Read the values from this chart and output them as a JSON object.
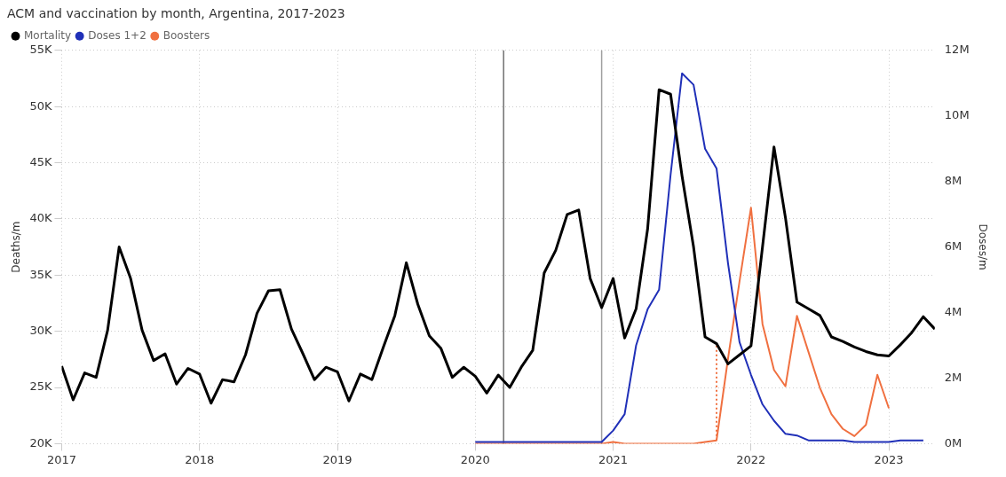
{
  "chart_data": {
    "type": "line",
    "title": "ACM and vaccination by month, Argentina, 2017-2023",
    "ylabel": "Deaths/m",
    "y2label": "Doses/m",
    "legend": "top left",
    "grid": true,
    "marker": "none",
    "xlim": [
      "2017-01",
      "2023-05"
    ],
    "xticks": [
      "2017",
      "2018",
      "2019",
      "2020",
      "2021",
      "2022",
      "2023"
    ],
    "ylim": [
      20000,
      55000
    ],
    "yticks": [
      {
        "value": 20000,
        "label": "20K"
      },
      {
        "value": 25000,
        "label": "25K"
      },
      {
        "value": 30000,
        "label": "30K"
      },
      {
        "value": 35000,
        "label": "35K"
      },
      {
        "value": 40000,
        "label": "40K"
      },
      {
        "value": 45000,
        "label": "45K"
      },
      {
        "value": 50000,
        "label": "50K"
      },
      {
        "value": 55000,
        "label": "55K"
      }
    ],
    "y2lim": [
      0,
      12000000
    ],
    "y2ticks": [
      {
        "value": 0,
        "label": "0M"
      },
      {
        "value": 2000000,
        "label": "2M"
      },
      {
        "value": 4000000,
        "label": "4M"
      },
      {
        "value": 6000000,
        "label": "6M"
      },
      {
        "value": 8000000,
        "label": "8M"
      },
      {
        "value": 10000000,
        "label": "10M"
      },
      {
        "value": 12000000,
        "label": "12M"
      }
    ],
    "ref_lines": [
      {
        "axis": "x",
        "value": "2020-03-15",
        "label": null,
        "color": "#707070"
      },
      {
        "axis": "x",
        "value": "2020-12-01",
        "label": null,
        "color": "#a0a0a0"
      }
    ],
    "series": [
      {
        "name": "Mortality",
        "color": "#000000",
        "x": [
          "2017-01",
          "2017-02",
          "2017-03",
          "2017-04",
          "2017-05",
          "2017-06",
          "2017-07",
          "2017-08",
          "2017-09",
          "2017-10",
          "2017-11",
          "2017-12",
          "2018-01",
          "2018-02",
          "2018-03",
          "2018-04",
          "2018-05",
          "2018-06",
          "2018-07",
          "2018-08",
          "2018-09",
          "2018-10",
          "2018-11",
          "2018-12",
          "2019-01",
          "2019-02",
          "2019-03",
          "2019-04",
          "2019-05",
          "2019-06",
          "2019-07",
          "2019-08",
          "2019-09",
          "2019-10",
          "2019-11",
          "2019-12",
          "2020-01",
          "2020-02",
          "2020-03",
          "2020-04",
          "2020-05",
          "2020-06",
          "2020-07",
          "2020-08",
          "2020-09",
          "2020-10",
          "2020-11",
          "2020-12",
          "2021-01",
          "2021-02",
          "2021-03",
          "2021-04",
          "2021-05",
          "2021-06",
          "2021-07",
          "2021-08",
          "2021-09",
          "2021-10",
          "2021-11",
          "2021-12",
          "2022-01",
          "2022-02",
          "2022-03",
          "2022-04",
          "2022-05",
          "2022-06",
          "2022-07",
          "2022-08",
          "2022-09",
          "2022-10",
          "2022-11",
          "2022-12",
          "2023-01",
          "2023-02",
          "2023-03",
          "2023-04",
          "2023-05"
        ],
        "values": [
          26900,
          23900,
          26300,
          25900,
          30100,
          37500,
          34700,
          30100,
          27400,
          28000,
          25300,
          26700,
          26200,
          23600,
          25700,
          25500,
          27900,
          31600,
          33600,
          33700,
          30200,
          28000,
          25700,
          26800,
          26400,
          23800,
          26200,
          25700,
          28600,
          31400,
          36100,
          32400,
          29600,
          28500,
          25900,
          26800,
          26000,
          24500,
          26100,
          25000,
          26800,
          28300,
          35200,
          37200,
          40400,
          40800,
          34700,
          32100,
          34700,
          29400,
          32000,
          39100,
          51500,
          51100,
          43800,
          37500,
          29500,
          28900,
          27100,
          27900,
          28700,
          37500,
          46400,
          40100,
          32600,
          32000,
          31400,
          29500,
          29100,
          28600,
          28200,
          27900,
          27800,
          28800,
          29900,
          31300,
          30200
        ]
      },
      {
        "name": "Doses 1+2",
        "color": "#2030b8",
        "axis": "y2",
        "x": [
          "2020-01",
          "2020-02",
          "2020-03",
          "2020-04",
          "2020-05",
          "2020-06",
          "2020-07",
          "2020-08",
          "2020-09",
          "2020-10",
          "2020-11",
          "2020-12",
          "2021-01",
          "2021-02",
          "2021-03",
          "2021-04",
          "2021-05",
          "2021-06",
          "2021-07",
          "2021-08",
          "2021-09",
          "2021-10",
          "2021-11",
          "2021-12",
          "2022-01",
          "2022-02",
          "2022-03",
          "2022-04",
          "2022-05",
          "2022-06",
          "2022-07",
          "2022-08",
          "2022-09",
          "2022-10",
          "2022-11",
          "2022-12",
          "2023-01",
          "2023-02",
          "2023-03",
          "2023-04"
        ],
        "values": [
          50000,
          50000,
          50000,
          50000,
          50000,
          50000,
          50000,
          50000,
          50000,
          50000,
          50000,
          50000,
          400000,
          900000,
          3000000,
          4100000,
          4700000,
          8200000,
          11300000,
          10950000,
          9000000,
          8400000,
          5500000,
          3100000,
          2100000,
          1200000,
          700000,
          300000,
          250000,
          100000,
          100000,
          100000,
          100000,
          50000,
          50000,
          50000,
          50000,
          100000,
          100000,
          100000
        ]
      },
      {
        "name": "Boosters",
        "color": "#f07040",
        "axis": "y2",
        "x": [
          "2020-01",
          "2020-02",
          "2020-03",
          "2020-04",
          "2020-05",
          "2020-06",
          "2020-07",
          "2020-08",
          "2020-09",
          "2020-10",
          "2020-11",
          "2020-12",
          "2021-01",
          "2021-02",
          "2021-03",
          "2021-04",
          "2021-05",
          "2021-06",
          "2021-07",
          "2021-08",
          "2021-09",
          "2021-10",
          "2021-11",
          "2021-12",
          "2022-01",
          "2022-02",
          "2022-03",
          "2022-04",
          "2022-05",
          "2022-06",
          "2022-07",
          "2022-08",
          "2022-09",
          "2022-10",
          "2022-11",
          "2022-12",
          "2023-01"
        ],
        "values": [
          0,
          0,
          0,
          0,
          0,
          0,
          0,
          0,
          0,
          0,
          0,
          0,
          50000,
          0,
          0,
          0,
          0,
          0,
          0,
          0,
          50000,
          100000,
          2600000,
          4950000,
          7200000,
          3650000,
          2250000,
          1750000,
          3900000,
          2800000,
          1700000,
          900000,
          450000,
          230000,
          570000,
          2100000,
          1080000
        ]
      },
      {
        "color": "#f07040",
        "axis": "y2",
        "line_style": "dotted",
        "x": [
          "2021-10",
          "2021-10"
        ],
        "values": [
          100000,
          3000000
        ]
      }
    ]
  }
}
